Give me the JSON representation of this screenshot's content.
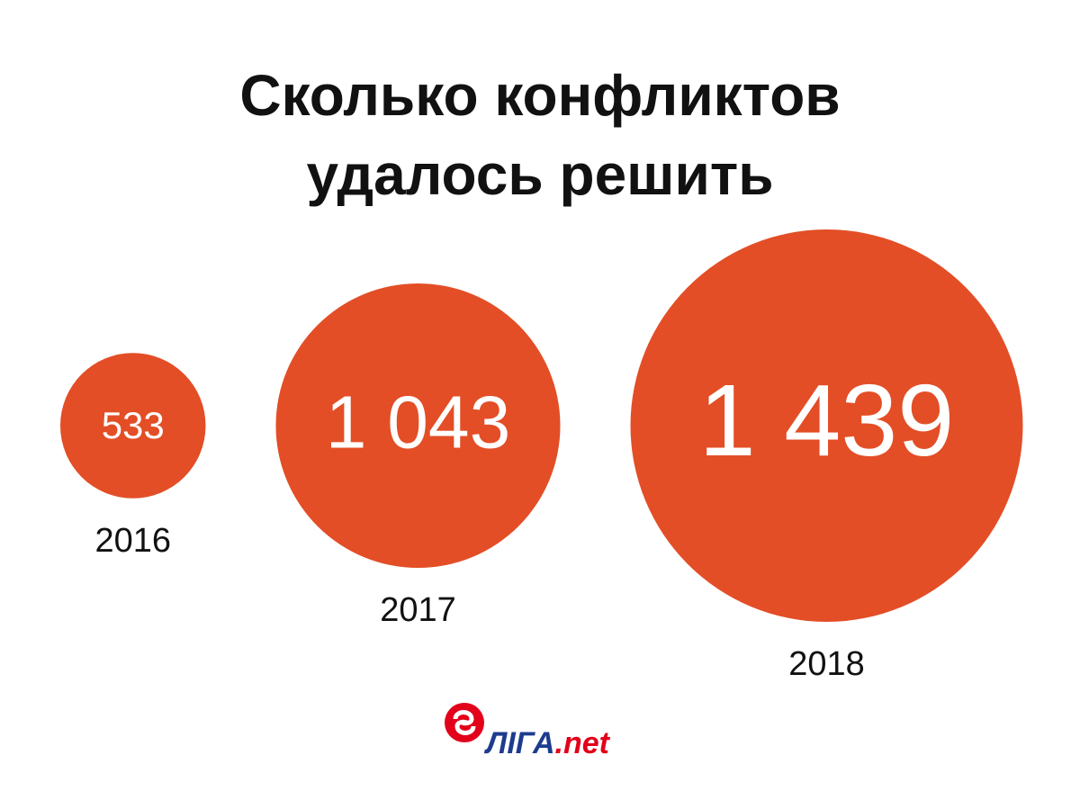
{
  "chart_data": {
    "type": "bubble",
    "title": "Сколько конфликтов удалось решить",
    "categories": [
      "2016",
      "2017",
      "2018"
    ],
    "values": [
      533,
      1043,
      1439
    ],
    "value_labels": [
      "533",
      "1 043",
      "1 439"
    ],
    "color": "#e34e26"
  },
  "logo": {
    "name": "ЛІГА",
    "suffix": ".net"
  }
}
